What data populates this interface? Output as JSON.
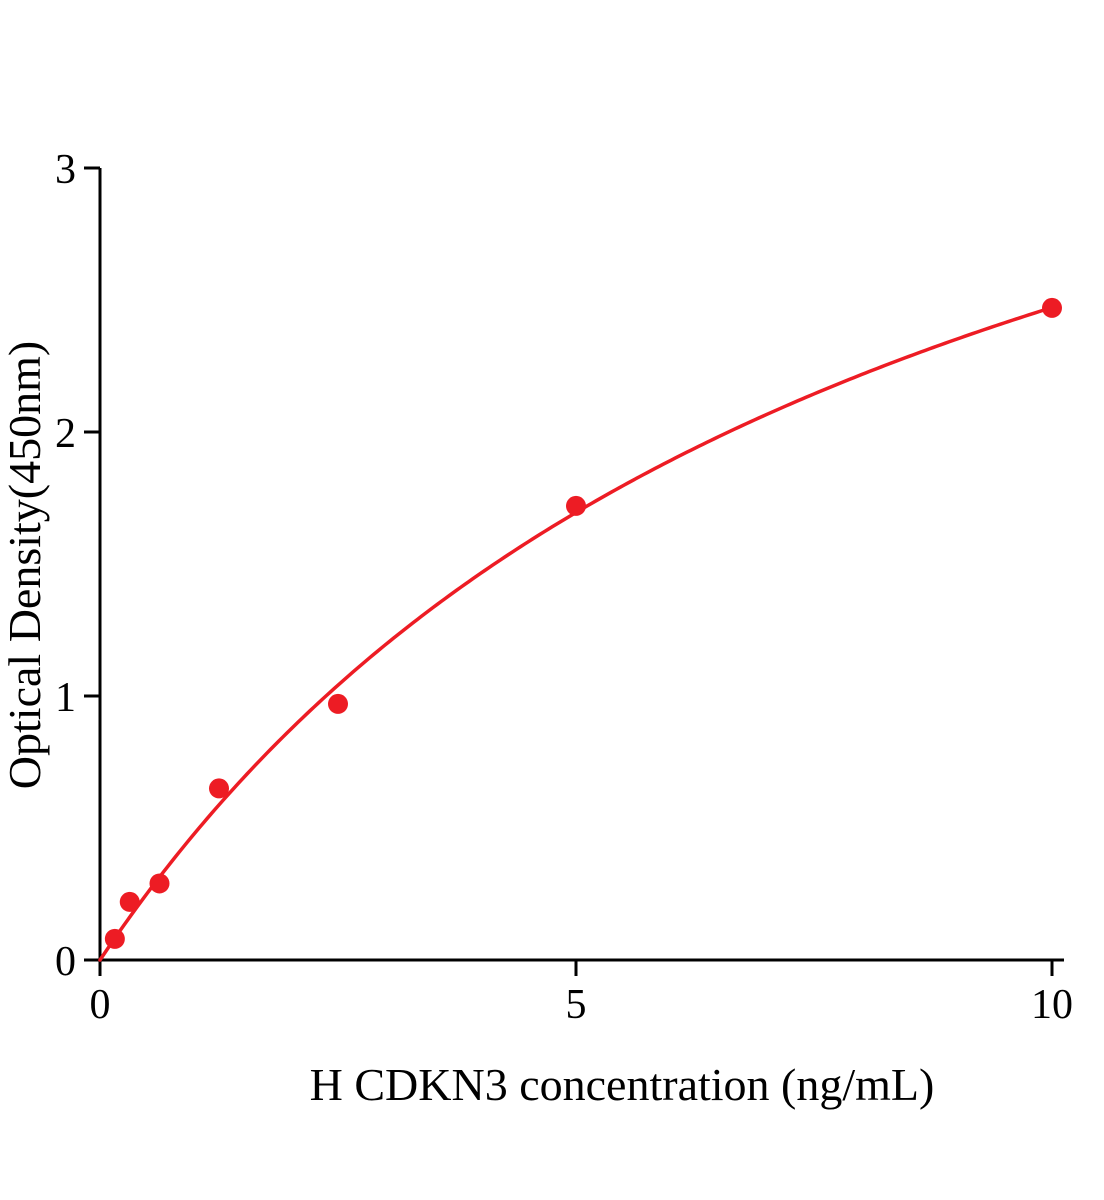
{
  "chart_data": {
    "type": "scatter",
    "title": "",
    "xlabel": "H CDKN3 concentration (ng/mL)",
    "ylabel": "Optical Density(450nm)",
    "x": [
      0.156,
      0.3125,
      0.625,
      1.25,
      2.5,
      5,
      10
    ],
    "y": [
      0.08,
      0.22,
      0.29,
      0.65,
      0.97,
      1.72,
      2.47
    ],
    "xticks": [
      "0",
      "5",
      "10"
    ],
    "yticks": [
      "0",
      "1",
      "2",
      "3"
    ],
    "xlim": [
      0,
      10
    ],
    "ylim": [
      0,
      3
    ],
    "grid": false,
    "legend": "none",
    "curve_type": "saturation-binding-fit-through-origin",
    "marker_shape": "filled-circle",
    "marker_color": "#ed1c24",
    "line_color": "#ed1c24",
    "axis_color": "#000000",
    "background_color": "#ffffff"
  }
}
